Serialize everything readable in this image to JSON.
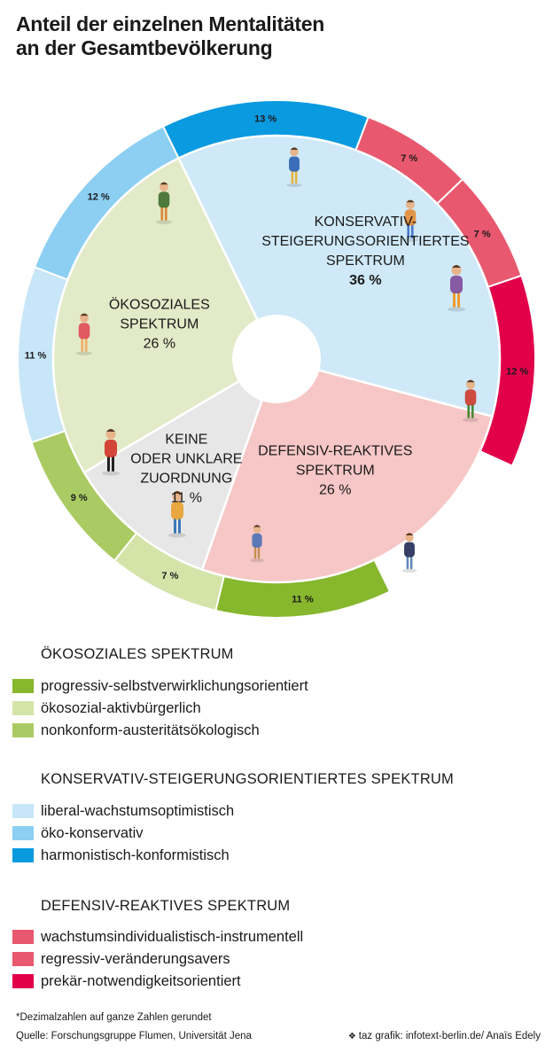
{
  "title": {
    "line1": "Anteil der einzelnen Mentalitäten",
    "line2": "an der Gesamtbevölkerung"
  },
  "chart_data": {
    "type": "pie",
    "subtype": "nested-donut",
    "inner_ring": [
      {
        "id": "konservativ",
        "label_lines": [
          "KONSERVATIV-",
          "STEIGERUNGSORIENTIERTES",
          "SPEKTRUM"
        ],
        "value": 36,
        "value_label": "36 %",
        "color": "#cfe9f8"
      },
      {
        "id": "defensiv",
        "label_lines": [
          "DEFENSIV-REAKTIVES",
          "SPEKTRUM"
        ],
        "value": 26,
        "value_label": "26 %",
        "color": "#f6c7c6"
      },
      {
        "id": "keine",
        "label_lines": [
          "KEINE",
          "ODER UNKLARE",
          "ZUORDNUNG"
        ],
        "value": 11,
        "value_label": "11 %",
        "color": "#e7e7e7"
      },
      {
        "id": "oekosozial",
        "label_lines": [
          "ÖKOSOZIALES",
          "SPEKTRUM"
        ],
        "value": 26,
        "value_label": "26 %",
        "color": "#e3eac7"
      }
    ],
    "outer_ring": [
      {
        "name": "harmonistisch-konformistisch",
        "value": 13,
        "label": "13 %",
        "color": "#0a9ae0",
        "group": "konservativ"
      },
      {
        "name": "wachstumsindividualistisch-instrumentell",
        "value": 7,
        "label": "7 %",
        "color": "#e8586f",
        "group": "defensiv"
      },
      {
        "name": "regressiv-veränderungsavers",
        "value": 7,
        "label": "7 %",
        "color": "#e8586f",
        "group": "defensiv"
      },
      {
        "name": "prekär-notwendigkeitsorientiert",
        "value": 12,
        "label": "12 %",
        "color": "#e2004b",
        "group": "defensiv"
      },
      {
        "name": "keine oder unklare Zuordnung",
        "value": 11,
        "label": "",
        "color": "#ffffff",
        "group": "keine"
      },
      {
        "name": "progressiv-selbstverwirklichungsorientiert",
        "value": 11,
        "label": "11 %",
        "color": "#86b72d",
        "group": "oekosozial"
      },
      {
        "name": "ökosozial-aktivbürgerlich",
        "value": 7,
        "label": "7 %",
        "color": "#d4e3a8",
        "group": "oekosozial"
      },
      {
        "name": "nonkonform-austeritätsökologisch",
        "value": 9,
        "label": "9 %",
        "color": "#aacb63",
        "group": "oekosozial"
      },
      {
        "name": "liberal-wachstumsoptimistisch",
        "value": 11,
        "label": "11 %",
        "color": "#c7e6f8",
        "group": "konservativ"
      },
      {
        "name": "öko-konservativ",
        "value": 12,
        "label": "12 %",
        "color": "#8ccff3",
        "group": "konservativ"
      }
    ],
    "start_angle_deg": -26,
    "slice_separator_color": "#ffffff"
  },
  "legend": [
    {
      "heading": "ÖKOSOZIALES SPEKTRUM",
      "items": [
        {
          "label": "progressiv-selbstverwirklichungsorientiert",
          "color": "#86b72d"
        },
        {
          "label": "ökosozial-aktivbürgerlich",
          "color": "#d4e3a8"
        },
        {
          "label": "nonkonform-austeritätsökologisch",
          "color": "#aacb63"
        }
      ]
    },
    {
      "heading": "KONSERVATIV-STEIGERUNGSORIENTIERTES SPEKTRUM",
      "items": [
        {
          "label": "liberal-wachstumsoptimistisch",
          "color": "#c7e6f8"
        },
        {
          "label": "öko-konservativ",
          "color": "#8ccff3"
        },
        {
          "label": "harmonistisch-konformistisch",
          "color": "#0a9ae0"
        }
      ]
    },
    {
      "heading": "DEFENSIV-REAKTIVES SPEKTRUM",
      "items": [
        {
          "label": "wachstumsindividualistisch-instrumentell",
          "color": "#e8586f"
        },
        {
          "label": "regressiv-veränderungsavers",
          "color": "#e8586f"
        },
        {
          "label": "prekär-notwendigkeitsorientiert",
          "color": "#e2004b"
        }
      ]
    }
  ],
  "footer": {
    "footnote": "*Dezimalzahlen auf ganze Zahlen gerundet",
    "source": "Quelle: Forschungsgruppe Flumen, Universität Jena",
    "credit": "taz grafik: infotext-berlin.de/ Anaïs Edely",
    "credit_icon": "taz-paw-icon"
  }
}
